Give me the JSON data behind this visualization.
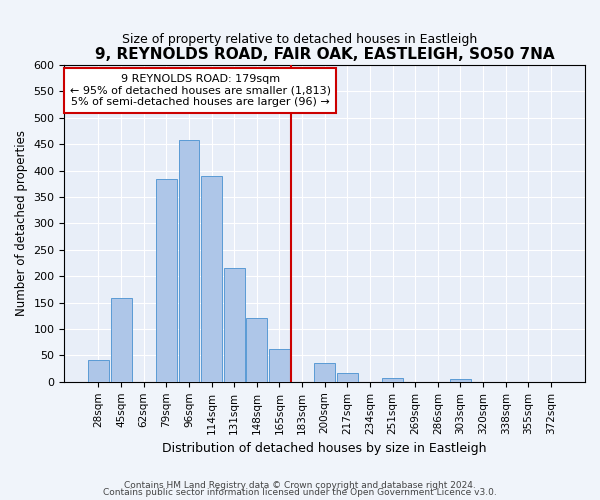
{
  "title": "9, REYNOLDS ROAD, FAIR OAK, EASTLEIGH, SO50 7NA",
  "subtitle": "Size of property relative to detached houses in Eastleigh",
  "xlabel": "Distribution of detached houses by size in Eastleigh",
  "ylabel": "Number of detached properties",
  "bar_labels": [
    "28sqm",
    "45sqm",
    "62sqm",
    "79sqm",
    "96sqm",
    "114sqm",
    "131sqm",
    "148sqm",
    "165sqm",
    "183sqm",
    "200sqm",
    "217sqm",
    "234sqm",
    "251sqm",
    "269sqm",
    "286sqm",
    "303sqm",
    "320sqm",
    "338sqm",
    "355sqm",
    "372sqm"
  ],
  "bar_values": [
    42,
    158,
    0,
    385,
    458,
    390,
    215,
    120,
    62,
    0,
    35,
    17,
    0,
    8,
    0,
    0,
    5,
    0,
    0,
    0,
    0
  ],
  "bar_color": "#aec6e8",
  "bar_edge_color": "#5a9bd5",
  "vline_x": 9,
  "vline_color": "#cc0000",
  "annotation_text": "9 REYNOLDS ROAD: 179sqm\n← 95% of detached houses are smaller (1,813)\n5% of semi-detached houses are larger (96) →",
  "annotation_box_color": "#ffffff",
  "annotation_box_edge": "#cc0000",
  "ylim": [
    0,
    600
  ],
  "yticks": [
    0,
    50,
    100,
    150,
    200,
    250,
    300,
    350,
    400,
    450,
    500,
    550,
    600
  ],
  "footer1": "Contains HM Land Registry data © Crown copyright and database right 2024.",
  "footer2": "Contains public sector information licensed under the Open Government Licence v3.0.",
  "bg_color": "#f0f4fa",
  "plot_bg_color": "#e8eef8"
}
